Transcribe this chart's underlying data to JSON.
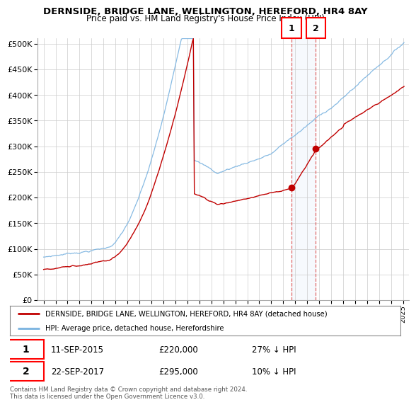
{
  "title": "DERNSIDE, BRIDGE LANE, WELLINGTON, HEREFORD, HR4 8AY",
  "subtitle": "Price paid vs. HM Land Registry's House Price Index (HPI)",
  "ylim": [
    0,
    510000
  ],
  "yticks": [
    0,
    50000,
    100000,
    150000,
    200000,
    250000,
    300000,
    350000,
    400000,
    450000,
    500000
  ],
  "xlim_start": 1994.5,
  "xlim_end": 2025.5,
  "sale1_date": 2015.69,
  "sale1_price": 220000,
  "sale2_date": 2017.72,
  "sale2_price": 295000,
  "hpi_color": "#7ab3e0",
  "price_color": "#c00000",
  "legend_text1": "DERNSIDE, BRIDGE LANE, WELLINGTON, HEREFORD, HR4 8AY (detached house)",
  "legend_text2": "HPI: Average price, detached house, Herefordshire",
  "annotation1_date": "11-SEP-2015",
  "annotation1_price": "£220,000",
  "annotation1_hpi": "27% ↓ HPI",
  "annotation2_date": "22-SEP-2017",
  "annotation2_price": "£295,000",
  "annotation2_hpi": "10% ↓ HPI",
  "footer": "Contains HM Land Registry data © Crown copyright and database right 2024.\nThis data is licensed under the Open Government Licence v3.0.",
  "background_color": "#ffffff",
  "grid_color": "#cccccc"
}
